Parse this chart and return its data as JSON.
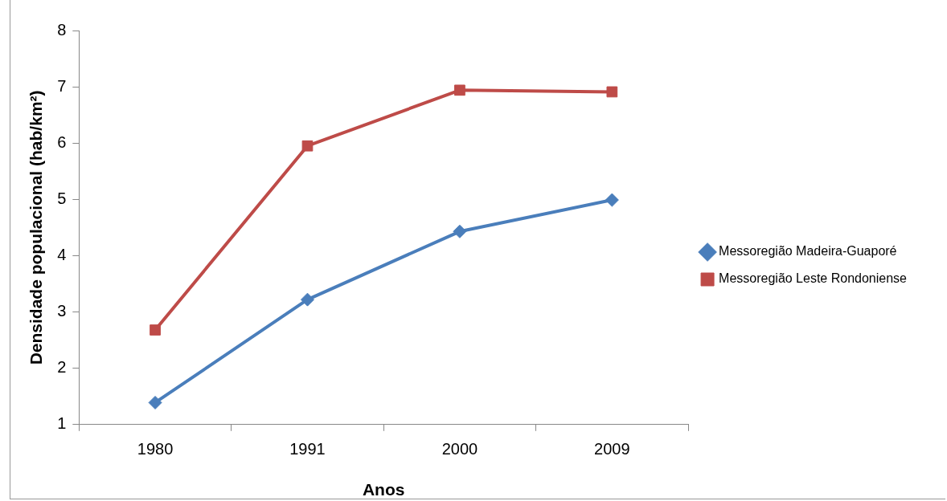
{
  "chart_data": {
    "type": "line",
    "xlabel": "Anos",
    "ylabel": "Densidade populacional (hab/km²)",
    "categories": [
      "1980",
      "1991",
      "2000",
      "2009"
    ],
    "series": [
      {
        "name": "Messoregião Madeira-Guaporé",
        "color": "#4a7ebb",
        "marker": "diamond",
        "values": [
          1.39,
          3.22,
          4.43,
          4.99
        ]
      },
      {
        "name": "Messoregião Leste Rondoniense",
        "color": "#be4b48",
        "marker": "square",
        "values": [
          2.68,
          5.95,
          6.94,
          6.91
        ]
      }
    ],
    "ylim": [
      1,
      8
    ],
    "yticks": [
      1,
      2,
      3,
      4,
      5,
      6,
      7,
      8
    ],
    "grid": false,
    "legend": "right"
  }
}
